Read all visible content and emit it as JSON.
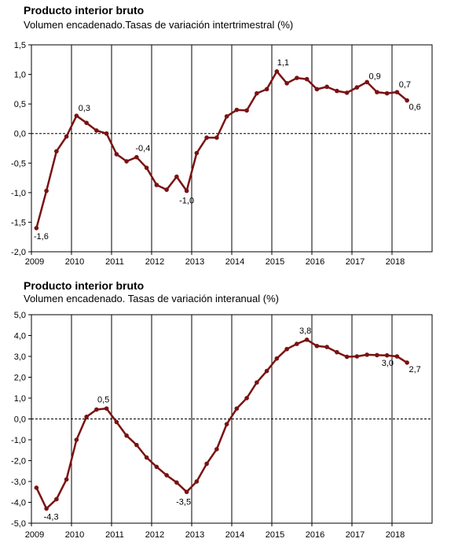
{
  "colors": {
    "series": "#7a1212",
    "axis": "#000000",
    "zero_line": "#000000"
  },
  "chart_data": [
    {
      "type": "line",
      "title": "Producto interior bruto",
      "subtitle": "Volumen encadenado.Tasas de variación intertrimestral (%)",
      "ylim": [
        -2.0,
        1.5
      ],
      "yticks": [
        -2.0,
        -1.5,
        -1.0,
        -0.5,
        0.0,
        0.5,
        1.0,
        1.5
      ],
      "ytick_labels": [
        "-2,0",
        "-1,5",
        "-1,0",
        "-0,5",
        "0,0",
        "0,5",
        "1,0",
        "1,5"
      ],
      "year_labels": [
        "2009",
        "2010",
        "2011",
        "2012",
        "2013",
        "2014",
        "2015",
        "2016",
        "2017",
        "2018"
      ],
      "grid": "vertical year separators",
      "zero_line": "dashed",
      "series": [
        {
          "values": [
            -1.6,
            -0.97,
            -0.3,
            -0.05,
            0.3,
            0.18,
            0.05,
            0.0,
            -0.35,
            -0.47,
            -0.4,
            -0.58,
            -0.87,
            -0.95,
            -0.73,
            -0.97,
            -0.33,
            -0.07,
            -0.07,
            0.29,
            0.4,
            0.39,
            0.68,
            0.75,
            1.05,
            0.85,
            0.94,
            0.92,
            0.75,
            0.79,
            0.72,
            0.69,
            0.78,
            0.87,
            0.7,
            0.68,
            0.7,
            0.56
          ]
        }
      ],
      "point_labels": [
        {
          "index": 0,
          "text": "-1,6"
        },
        {
          "index": 4,
          "text": "0,3"
        },
        {
          "index": 10,
          "text": "-0,4"
        },
        {
          "index": 15,
          "text": "-1,0"
        },
        {
          "index": 24,
          "text": "1,1"
        },
        {
          "index": 33,
          "text": "0,9"
        },
        {
          "index": 36,
          "text": "0,7"
        },
        {
          "index": 37,
          "text": "0,6"
        }
      ]
    },
    {
      "type": "line",
      "title": "Producto interior bruto",
      "subtitle": "Volumen encadenado. Tasas de variación interanual (%)",
      "ylim": [
        -5.0,
        5.0
      ],
      "yticks": [
        -5.0,
        -4.0,
        -3.0,
        -2.0,
        -1.0,
        0.0,
        1.0,
        2.0,
        3.0,
        4.0,
        5.0
      ],
      "ytick_labels": [
        "-5,0",
        "-4,0",
        "-3,0",
        "-2,0",
        "-1,0",
        "0,0",
        "1,0",
        "2,0",
        "3,0",
        "4,0",
        "5,0"
      ],
      "year_labels": [
        "2009",
        "2010",
        "2011",
        "2012",
        "2013",
        "2014",
        "2015",
        "2016",
        "2017",
        "2018"
      ],
      "grid": "vertical year separators",
      "zero_line": "dashed",
      "series": [
        {
          "values": [
            -3.3,
            -4.3,
            -3.85,
            -2.9,
            -1.0,
            0.1,
            0.45,
            0.5,
            -0.15,
            -0.8,
            -1.25,
            -1.85,
            -2.3,
            -2.7,
            -3.05,
            -3.5,
            -3.0,
            -2.15,
            -1.45,
            -0.25,
            0.5,
            1.0,
            1.75,
            2.3,
            2.9,
            3.35,
            3.6,
            3.8,
            3.5,
            3.45,
            3.2,
            2.98,
            3.0,
            3.08,
            3.06,
            3.05,
            3.0,
            2.7
          ]
        }
      ],
      "point_labels": [
        {
          "index": 1,
          "text": "-4,3"
        },
        {
          "index": 7,
          "text": "0,5"
        },
        {
          "index": 15,
          "text": "-3,5"
        },
        {
          "index": 27,
          "text": "3,8"
        },
        {
          "index": 36,
          "text": "3,0"
        },
        {
          "index": 37,
          "text": "2,7"
        }
      ]
    }
  ]
}
